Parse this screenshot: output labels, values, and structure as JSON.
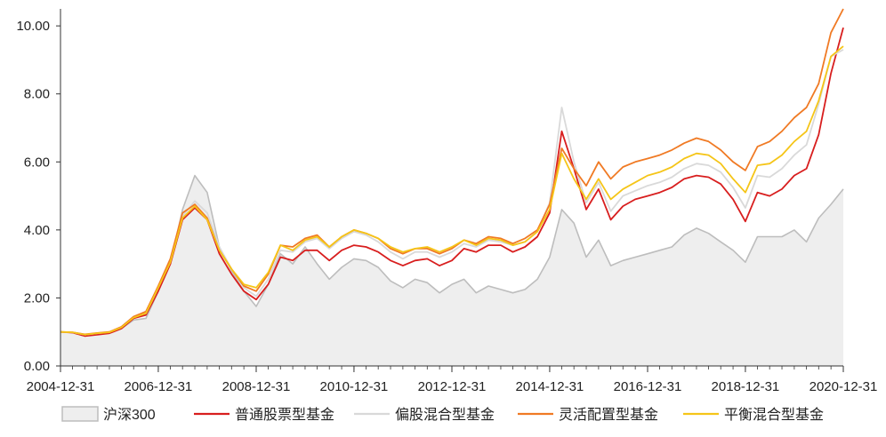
{
  "chart_data": {
    "type": "line",
    "title": "",
    "xlabel": "",
    "ylabel": "",
    "ylim": [
      0,
      10.5
    ],
    "xlim": [
      "2004-12-31",
      "2020-12-31"
    ],
    "y_ticks": [
      "0.00",
      "2.00",
      "4.00",
      "6.00",
      "8.00",
      "10.00"
    ],
    "x_ticks": [
      "2004-12-31",
      "2006-12-31",
      "2008-12-31",
      "2010-12-31",
      "2012-12-31",
      "2014-12-31",
      "2016-12-31",
      "2018-12-31",
      "2020-12-31"
    ],
    "grid": false,
    "legend_position": "bottom",
    "dates": [
      "2004-12-31",
      "2005-03-31",
      "2005-06-30",
      "2005-09-30",
      "2005-12-31",
      "2006-03-31",
      "2006-06-30",
      "2006-09-30",
      "2006-12-31",
      "2007-03-31",
      "2007-06-30",
      "2007-09-30",
      "2007-12-31",
      "2008-03-31",
      "2008-06-30",
      "2008-09-30",
      "2008-12-31",
      "2009-03-31",
      "2009-06-30",
      "2009-09-30",
      "2009-12-31",
      "2010-03-31",
      "2010-06-30",
      "2010-09-30",
      "2010-12-31",
      "2011-03-31",
      "2011-06-30",
      "2011-09-30",
      "2011-12-31",
      "2012-03-31",
      "2012-06-30",
      "2012-09-30",
      "2012-12-31",
      "2013-03-31",
      "2013-06-30",
      "2013-09-30",
      "2013-12-31",
      "2014-03-31",
      "2014-06-30",
      "2014-09-30",
      "2014-12-31",
      "2015-03-31",
      "2015-06-30",
      "2015-09-30",
      "2015-12-31",
      "2016-03-31",
      "2016-06-30",
      "2016-09-30",
      "2016-12-31",
      "2017-03-31",
      "2017-06-30",
      "2017-09-30",
      "2017-12-31",
      "2018-03-31",
      "2018-06-30",
      "2018-09-30",
      "2018-12-31",
      "2019-03-31",
      "2019-06-30",
      "2019-09-30",
      "2019-12-31",
      "2020-03-31",
      "2020-06-30",
      "2020-09-30",
      "2020-12-31"
    ],
    "series": [
      {
        "name": "沪深300",
        "color": "#bdbdbd",
        "fill": "#eeeeee",
        "style": "area",
        "values": [
          1.0,
          0.98,
          0.9,
          0.95,
          0.98,
          1.1,
          1.35,
          1.4,
          2.2,
          3.0,
          4.6,
          5.6,
          5.1,
          3.5,
          2.8,
          2.2,
          1.75,
          2.4,
          3.3,
          3.0,
          3.5,
          3.0,
          2.55,
          2.9,
          3.15,
          3.1,
          2.9,
          2.5,
          2.3,
          2.55,
          2.45,
          2.15,
          2.4,
          2.55,
          2.15,
          2.35,
          2.25,
          2.15,
          2.25,
          2.55,
          3.2,
          4.6,
          4.2,
          3.2,
          3.7,
          2.95,
          3.1,
          3.2,
          3.3,
          3.4,
          3.5,
          3.85,
          4.05,
          3.9,
          3.65,
          3.4,
          3.05,
          3.8,
          3.8,
          3.8,
          4.0,
          3.65,
          4.35,
          4.75,
          5.2
        ]
      },
      {
        "name": "普通股票型基金",
        "color": "#d81e1e",
        "values": [
          1.0,
          0.98,
          0.88,
          0.92,
          0.96,
          1.1,
          1.4,
          1.5,
          2.2,
          3.0,
          4.3,
          4.65,
          4.3,
          3.3,
          2.7,
          2.2,
          1.95,
          2.4,
          3.2,
          3.1,
          3.4,
          3.4,
          3.1,
          3.4,
          3.55,
          3.5,
          3.35,
          3.1,
          2.95,
          3.1,
          3.15,
          2.95,
          3.1,
          3.45,
          3.35,
          3.55,
          3.55,
          3.35,
          3.5,
          3.8,
          4.5,
          6.9,
          5.8,
          4.6,
          5.2,
          4.3,
          4.7,
          4.9,
          5.0,
          5.1,
          5.25,
          5.5,
          5.6,
          5.55,
          5.35,
          4.9,
          4.25,
          5.1,
          5.0,
          5.2,
          5.6,
          5.8,
          6.8,
          8.6,
          9.95
        ]
      },
      {
        "name": "偏股混合型基金",
        "color": "#d9d9d9",
        "values": [
          1.0,
          0.99,
          0.92,
          0.96,
          1.0,
          1.15,
          1.45,
          1.55,
          2.3,
          3.1,
          4.4,
          4.85,
          4.5,
          3.5,
          2.85,
          2.3,
          2.05,
          2.55,
          3.4,
          3.35,
          3.65,
          3.75,
          3.45,
          3.75,
          3.95,
          3.85,
          3.65,
          3.35,
          3.15,
          3.35,
          3.35,
          3.2,
          3.35,
          3.6,
          3.5,
          3.7,
          3.65,
          3.55,
          3.65,
          3.95,
          4.8,
          7.6,
          6.0,
          4.8,
          5.4,
          4.55,
          5.0,
          5.15,
          5.3,
          5.4,
          5.55,
          5.8,
          5.95,
          5.9,
          5.7,
          5.25,
          4.65,
          5.6,
          5.55,
          5.8,
          6.2,
          6.5,
          7.7,
          9.1,
          9.3
        ]
      },
      {
        "name": "灵活配置型基金",
        "color": "#f07a24",
        "values": [
          1.0,
          0.99,
          0.93,
          0.97,
          1.0,
          1.15,
          1.45,
          1.6,
          2.35,
          3.15,
          4.5,
          4.75,
          4.35,
          3.4,
          2.85,
          2.35,
          2.2,
          2.7,
          3.55,
          3.5,
          3.75,
          3.85,
          3.5,
          3.8,
          4.0,
          3.9,
          3.75,
          3.45,
          3.3,
          3.45,
          3.45,
          3.3,
          3.45,
          3.7,
          3.6,
          3.8,
          3.75,
          3.6,
          3.75,
          4.0,
          4.75,
          6.4,
          5.8,
          5.3,
          6.0,
          5.5,
          5.85,
          6.0,
          6.1,
          6.2,
          6.35,
          6.55,
          6.7,
          6.6,
          6.35,
          6.0,
          5.75,
          6.45,
          6.6,
          6.9,
          7.3,
          7.6,
          8.3,
          9.8,
          10.5
        ]
      },
      {
        "name": "平衡混合型基金",
        "color": "#f5c518",
        "values": [
          1.0,
          0.99,
          0.92,
          0.96,
          0.99,
          1.13,
          1.42,
          1.55,
          2.3,
          3.05,
          4.35,
          4.7,
          4.3,
          3.4,
          2.85,
          2.4,
          2.3,
          2.75,
          3.55,
          3.4,
          3.7,
          3.8,
          3.5,
          3.8,
          4.0,
          3.9,
          3.75,
          3.5,
          3.35,
          3.45,
          3.5,
          3.35,
          3.5,
          3.7,
          3.55,
          3.75,
          3.7,
          3.55,
          3.65,
          3.95,
          4.6,
          6.25,
          5.5,
          4.9,
          5.5,
          4.9,
          5.2,
          5.4,
          5.6,
          5.7,
          5.85,
          6.1,
          6.25,
          6.2,
          5.95,
          5.5,
          5.1,
          5.9,
          5.95,
          6.2,
          6.6,
          6.9,
          7.8,
          9.1,
          9.4
        ]
      }
    ]
  }
}
